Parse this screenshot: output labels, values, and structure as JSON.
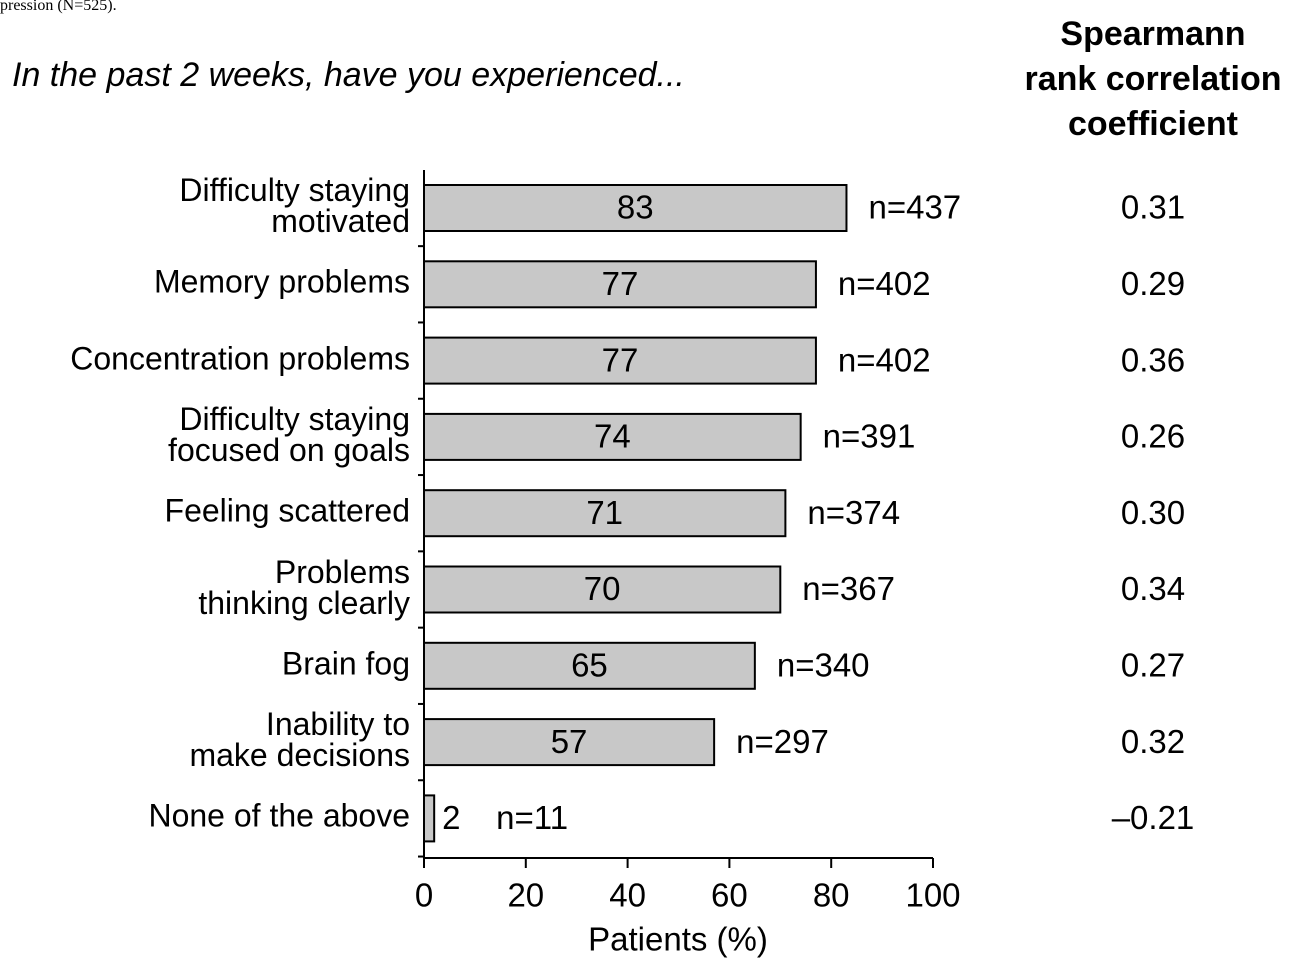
{
  "chart_data": {
    "type": "hbar",
    "caption": "pression (N=525).",
    "title": "In the past 2 weeks, have you experienced...",
    "categories": [
      "Difficulty staying\nmotivated",
      "Memory problems",
      "Concentration problems",
      "Difficulty staying\nfocused on goals",
      "Feeling scattered",
      "Problems\nthinking clearly",
      "Brain fog",
      "Inability to\nmake decisions",
      "None of the above"
    ],
    "values": [
      83,
      77,
      77,
      74,
      71,
      70,
      65,
      57,
      2
    ],
    "count_labels": [
      "n=437",
      "n=402",
      "n=402",
      "n=391",
      "n=374",
      "n=367",
      "n=340",
      "n=297",
      "n=11"
    ],
    "correlation_title": "Spearmann\nrank correlation\ncoefficient",
    "correlations": [
      "0.31",
      "0.29",
      "0.36",
      "0.26",
      "0.30",
      "0.34",
      "0.27",
      "0.32",
      "–0.21"
    ],
    "color": "#c8c8c8",
    "xlabel": "Patients (%)",
    "xlim": [
      0,
      100
    ],
    "xticks": [
      0,
      20,
      40,
      60,
      80,
      100
    ]
  }
}
